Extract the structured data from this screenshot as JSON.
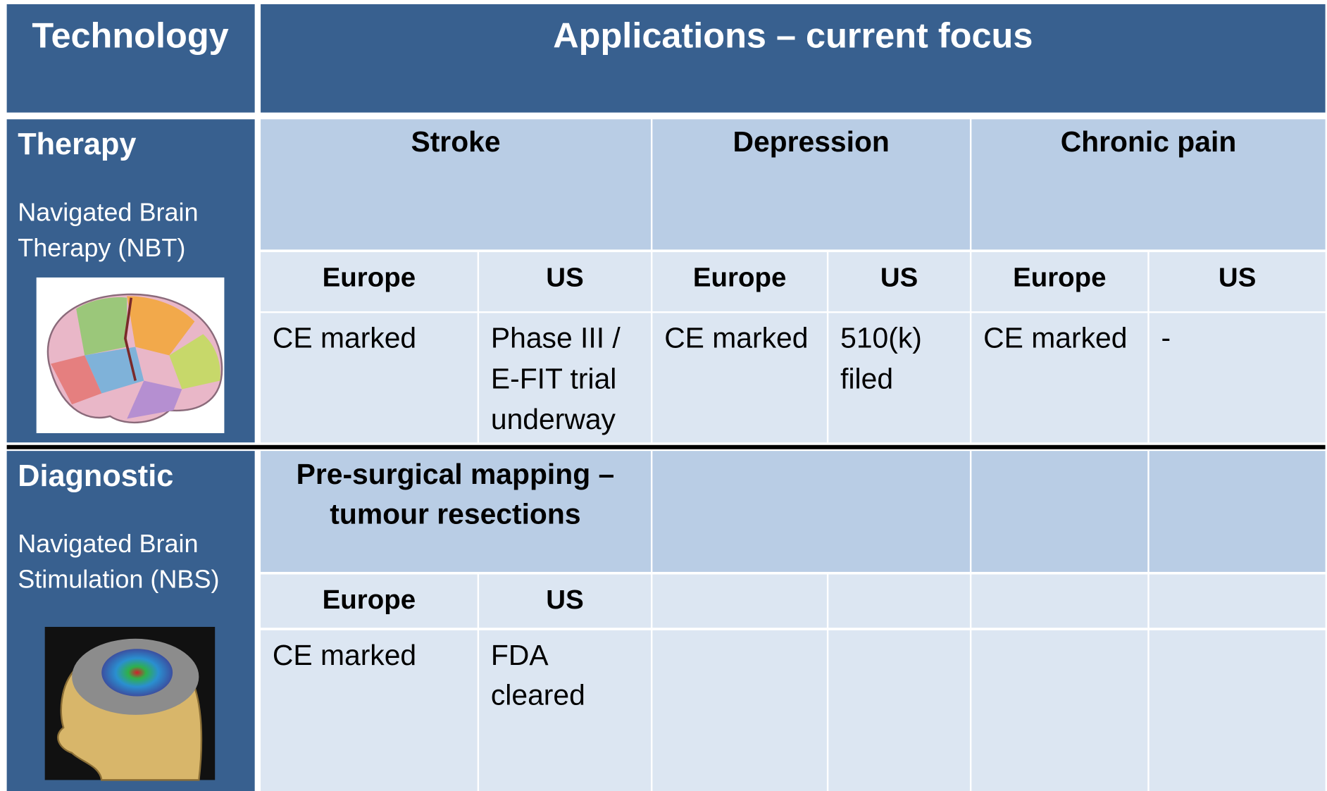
{
  "header": {
    "technology": "Technology",
    "applications": "Applications – current focus"
  },
  "therapy": {
    "title": "Therapy",
    "subtitle_lines": [
      "Navigated Brain",
      "Therapy (NBT)"
    ],
    "applications": [
      {
        "name": "Stroke",
        "regions": [
          "Europe",
          "US"
        ],
        "europe": [
          "CE marked"
        ],
        "us": [
          "Phase III /",
          "E-FIT trial",
          "underway"
        ]
      },
      {
        "name": "Depression",
        "regions": [
          "Europe",
          "US"
        ],
        "europe": [
          "CE marked"
        ],
        "us": [
          "510(k)",
          "filed"
        ]
      },
      {
        "name": "Chronic pain",
        "regions": [
          "Europe",
          "US"
        ],
        "europe": [
          "CE marked"
        ],
        "us": [
          "-"
        ]
      }
    ]
  },
  "diagnostic": {
    "title": "Diagnostic",
    "subtitle_lines": [
      "Navigated Brain",
      "Stimulation (NBS)"
    ],
    "applications": [
      {
        "name_lines": [
          "Pre-surgical mapping –",
          "tumour resections"
        ],
        "regions": [
          "Europe",
          "US"
        ],
        "europe": [
          "CE marked"
        ],
        "us": [
          "FDA",
          "cleared"
        ]
      }
    ]
  }
}
